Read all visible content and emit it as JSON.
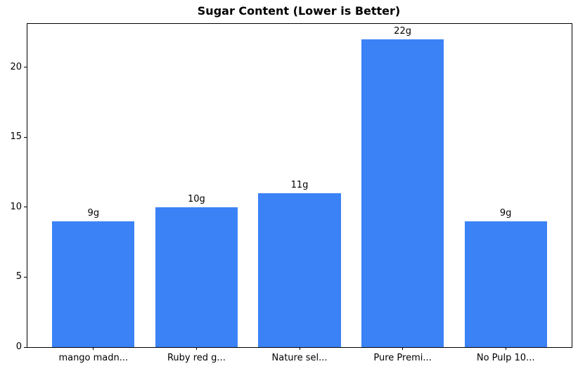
{
  "chart_data": {
    "type": "bar",
    "title": "Sugar Content (Lower is Better)",
    "categories": [
      "mango madn...",
      "Ruby red g...",
      "Nature sel...",
      "Pure Premi...",
      "No Pulp 10..."
    ],
    "values": [
      9,
      10,
      11,
      22,
      9
    ],
    "bar_labels": [
      "9g",
      "10g",
      "11g",
      "22g",
      "9g"
    ],
    "xlabel": "",
    "ylabel": "",
    "yticks": [
      0,
      5,
      10,
      15,
      20
    ],
    "ylim": [
      0,
      23.1
    ],
    "bar_color": "#3b82f6",
    "axis_color": "#000000",
    "background_color": "#ffffff",
    "grid": false,
    "bar_width_fraction": 0.8
  }
}
